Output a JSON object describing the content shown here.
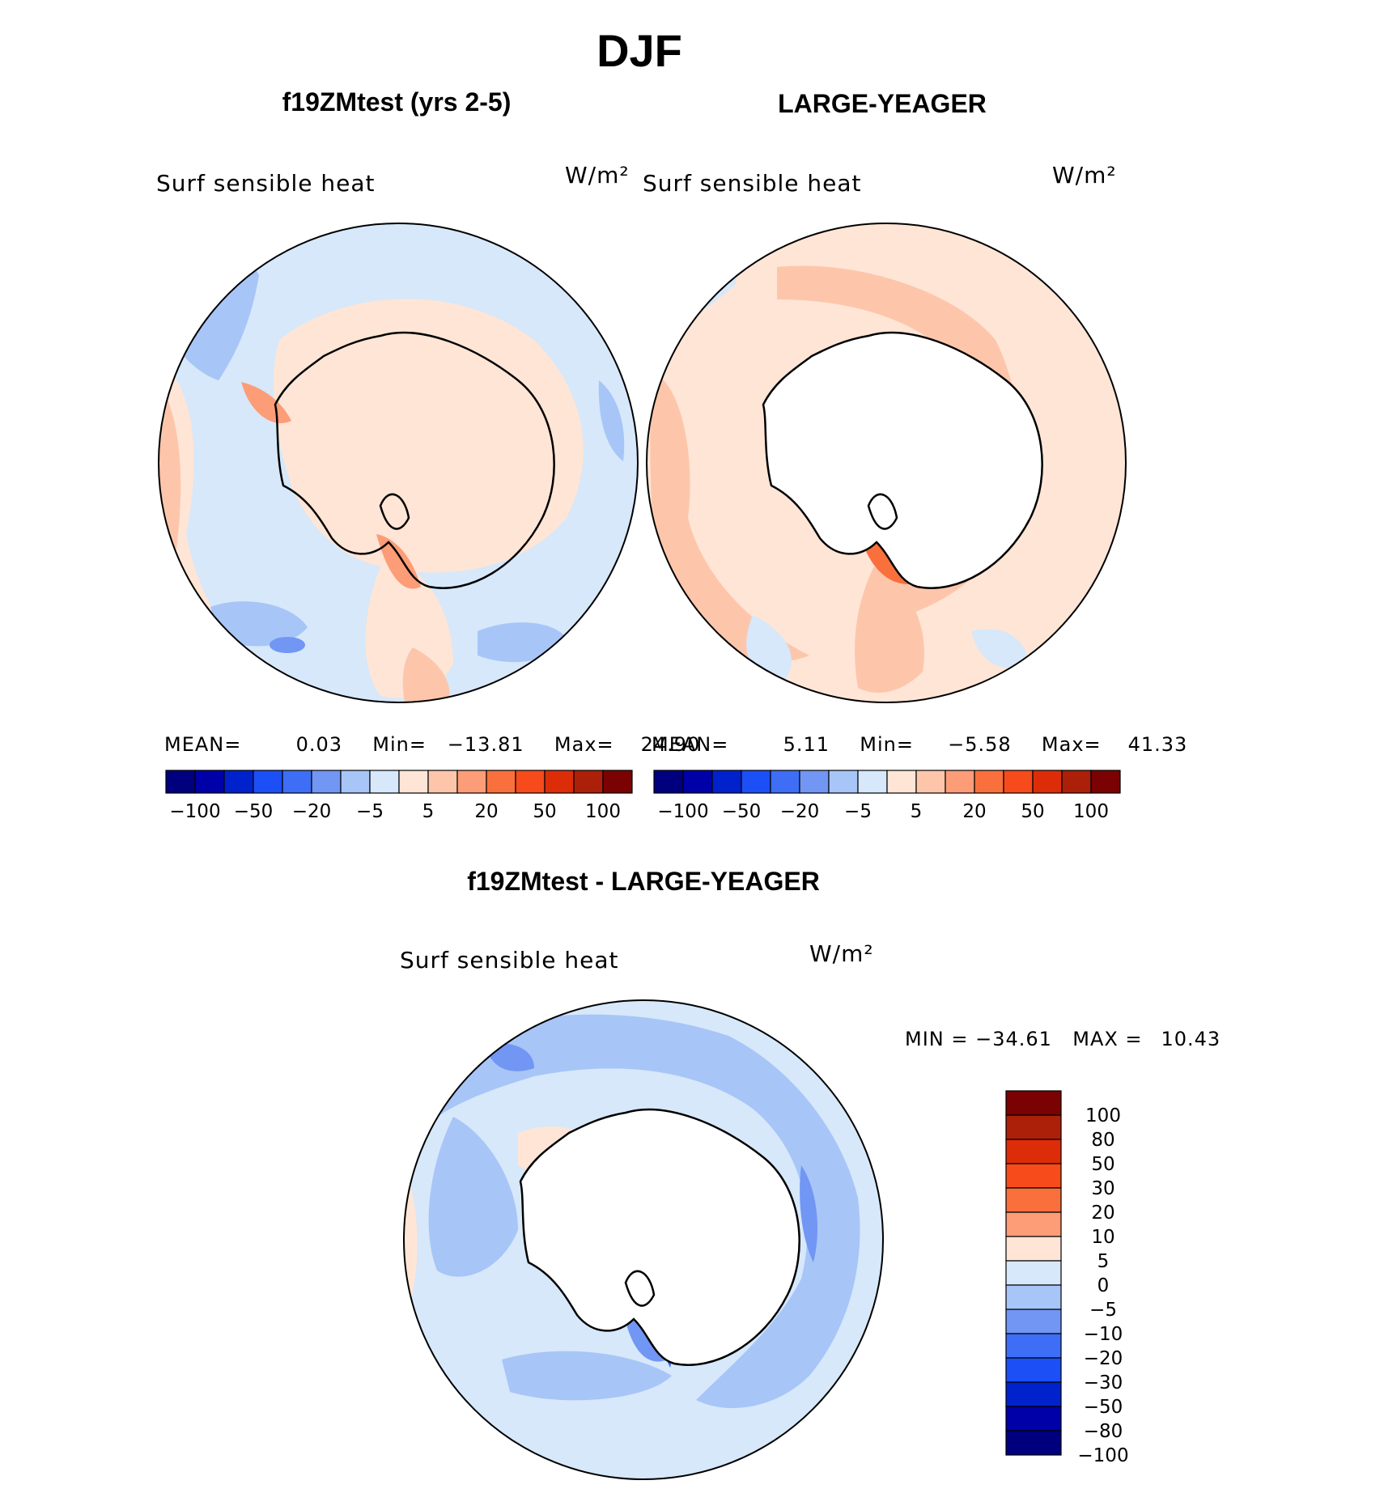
{
  "page_title": "DJF",
  "chart_data": [
    {
      "type": "heatmap",
      "title": "f19ZMtest (yrs 2-5)",
      "variable": "Surf sensible heat",
      "units": "W/m²",
      "projection": "south polar stereographic",
      "stats": {
        "mean_label": "MEAN=",
        "mean": "0.03",
        "min_label": "Min=",
        "min": "−13.81",
        "max_label": "Max=",
        "max": "24.90"
      },
      "colorbar": {
        "orientation": "horizontal",
        "colors": [
          "#00007f",
          "#0000a8",
          "#0022cc",
          "#1c4ff5",
          "#3d6ef5",
          "#7196f4",
          "#a8c5f7",
          "#d6e8fa",
          "#fee5d6",
          "#fdc6ab",
          "#fc9d77",
          "#f9703d",
          "#f74b1c",
          "#dc2d08",
          "#ac1f08",
          "#7b0202"
        ],
        "tick_labels": [
          "−100",
          "−50",
          "−20",
          "−5",
          "5",
          "20",
          "50",
          "100"
        ]
      }
    },
    {
      "type": "heatmap",
      "title": "LARGE-YEAGER",
      "variable": "Surf sensible heat",
      "units": "W/m²",
      "projection": "south polar stereographic",
      "stats": {
        "mean_label": "MEAN=",
        "mean": "5.11",
        "min_label": "Min=",
        "min": "−5.58",
        "max_label": "Max=",
        "max": "41.33"
      },
      "colorbar": {
        "orientation": "horizontal",
        "colors": [
          "#00007f",
          "#0000a8",
          "#0022cc",
          "#1c4ff5",
          "#3d6ef5",
          "#7196f4",
          "#a8c5f7",
          "#d6e8fa",
          "#fee5d6",
          "#fdc6ab",
          "#fc9d77",
          "#f9703d",
          "#f74b1c",
          "#dc2d08",
          "#ac1f08",
          "#7b0202"
        ],
        "tick_labels": [
          "−100",
          "−50",
          "−20",
          "−5",
          "5",
          "20",
          "50",
          "100"
        ]
      }
    },
    {
      "type": "heatmap",
      "title": "f19ZMtest - LARGE-YEAGER",
      "variable": "Surf sensible heat",
      "units": "W/m²",
      "projection": "south polar stereographic",
      "stats": {
        "min_label": "MIN =",
        "min": "−34.61",
        "max_label": "MAX =",
        "max": "10.43"
      },
      "colorbar": {
        "orientation": "vertical",
        "colors": [
          "#7b0202",
          "#ac1f08",
          "#dc2d08",
          "#f74b1c",
          "#f9703d",
          "#fc9d77",
          "#fee5d6",
          "#d6e8fa",
          "#a8c5f7",
          "#7196f4",
          "#3d6ef5",
          "#1c4ff5",
          "#0022cc",
          "#0000a8",
          "#00007f"
        ],
        "tick_labels": [
          "100",
          "80",
          "50",
          "30",
          "20",
          "10",
          "5",
          "0",
          "−5",
          "−10",
          "−20",
          "−30",
          "−50",
          "−80",
          "−100"
        ]
      }
    }
  ]
}
